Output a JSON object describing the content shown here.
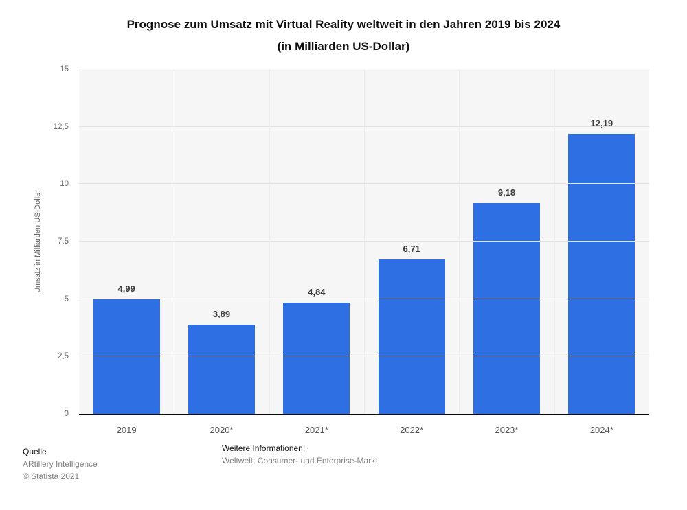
{
  "title": {
    "line1": "Prognose zum Umsatz mit Virtual Reality weltweit in den Jahren 2019 bis 2024",
    "line2": "(in Milliarden US-Dollar)"
  },
  "chart_data": {
    "type": "bar",
    "title": "Prognose zum Umsatz mit Virtual Reality weltweit in den Jahren 2019 bis 2024 (in Milliarden US-Dollar)",
    "categories": [
      "2019",
      "2020*",
      "2021*",
      "2022*",
      "2023*",
      "2024*"
    ],
    "values": [
      4.99,
      3.89,
      4.84,
      6.71,
      9.18,
      12.19
    ],
    "value_labels": [
      "4,99",
      "3,89",
      "4,84",
      "6,71",
      "9,18",
      "12,19"
    ],
    "xlabel": "",
    "ylabel": "Umsatz in Milliarden US-Dollar",
    "ylim": [
      0,
      15
    ],
    "yticks": [
      0,
      2.5,
      5,
      7.5,
      10,
      12.5,
      15
    ],
    "ytick_labels": [
      "0",
      "2,5",
      "5",
      "7,5",
      "10",
      "12,5",
      "15"
    ],
    "grid": true,
    "legend": false,
    "bar_color": "#2e6fe3",
    "plot_background": "#f6f6f6"
  },
  "footer": {
    "source_label": "Quelle",
    "source_name": "ARtillery Intelligence",
    "copyright": "© Statista 2021",
    "info_label": "Weitere Informationen:",
    "info_text": "Weltweit; Consumer- und Enterprise-Markt"
  }
}
